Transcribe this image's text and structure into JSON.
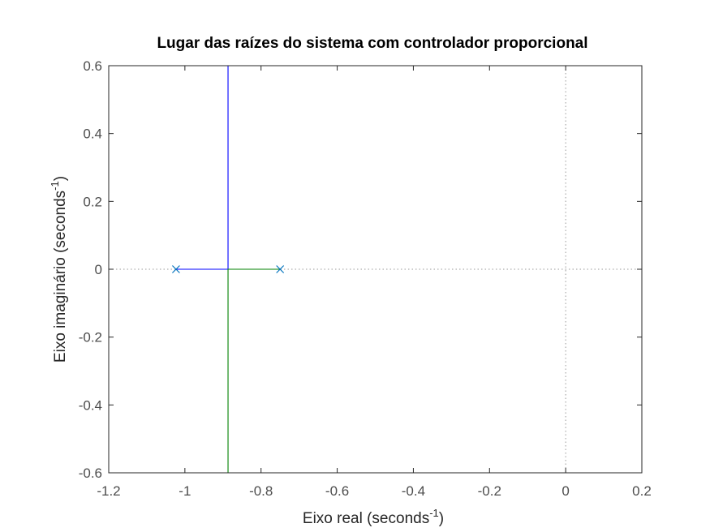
{
  "chart_data": {
    "type": "line",
    "title": "Lugar das raízes do sistema com controlador proporcional",
    "xlabel": "Eixo real (seconds",
    "xlabel_sup": "-1",
    "xlabel_end": ")",
    "ylabel": "Eixo imaginário (seconds",
    "ylabel_sup": "-1",
    "ylabel_end": ")",
    "xlim": [
      -1.2,
      0.2
    ],
    "ylim": [
      -0.6,
      0.6
    ],
    "xticks": [
      -1.2,
      -1,
      -0.8,
      -0.6,
      -0.4,
      -0.2,
      0,
      0.2
    ],
    "xtick_labels": [
      "-1.2",
      "-1",
      "-0.8",
      "-0.6",
      "-0.4",
      "-0.2",
      "0",
      "0.2"
    ],
    "yticks": [
      -0.6,
      -0.4,
      -0.2,
      0,
      0.2,
      0.4,
      0.6
    ],
    "ytick_labels": [
      "-0.6",
      "-0.4",
      "-0.2",
      "0",
      "0.2",
      "0.4",
      "0.6"
    ],
    "grid": false,
    "series": [
      {
        "color": "#0000ff",
        "x": [
          -1.0233,
          -0.8867,
          -0.8867
        ],
        "y": [
          0,
          0,
          0.6
        ]
      },
      {
        "color": "#008000",
        "x": [
          -0.75,
          -0.8867,
          -0.8867
        ],
        "y": [
          0,
          0,
          -0.6
        ]
      }
    ],
    "poles": [
      {
        "x": -1.0233,
        "y": 0,
        "marker": "x",
        "color": "#0072bd"
      },
      {
        "x": -0.75,
        "y": 0,
        "marker": "x",
        "color": "#0072bd"
      }
    ],
    "reference_lines": [
      {
        "orientation": "horizontal",
        "value": 0,
        "style": "dotted",
        "color": "#999999"
      },
      {
        "orientation": "vertical",
        "value": 0,
        "style": "dotted",
        "color": "#999999"
      }
    ]
  }
}
